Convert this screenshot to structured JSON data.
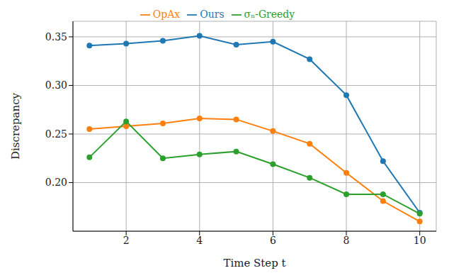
{
  "chart_data": {
    "type": "line",
    "x_label": "Time Step t",
    "y_label": "Discrepancy",
    "x": [
      1,
      2,
      3,
      4,
      5,
      6,
      7,
      8,
      9,
      10
    ],
    "series": [
      {
        "name": "Ours",
        "color": "#1f77b4",
        "values": [
          0.341,
          0.343,
          0.346,
          0.351,
          0.342,
          0.345,
          0.327,
          0.29,
          0.222,
          0.169
        ]
      },
      {
        "name": "OpAx",
        "color": "#ff7f0e",
        "values": [
          0.255,
          0.258,
          0.261,
          0.266,
          0.265,
          0.253,
          0.24,
          0.21,
          0.181,
          0.16
        ]
      },
      {
        "name": "σₙ-Greedy",
        "color": "#2ca02c",
        "values": [
          0.226,
          0.263,
          0.225,
          0.229,
          0.232,
          0.219,
          0.205,
          0.188,
          0.188,
          0.168
        ]
      }
    ],
    "xlim": [
      0.55,
      10.45
    ],
    "ylim": [
      0.15,
      0.366
    ],
    "xticks": [
      2,
      4,
      6,
      8,
      10
    ],
    "yticks": [
      {
        "value": 0.2,
        "label": "0.20"
      },
      0.25,
      {
        "value": 0.3,
        "label": "0.30"
      },
      0.35
    ],
    "grid": true,
    "legend": "top",
    "marker": "circle"
  }
}
